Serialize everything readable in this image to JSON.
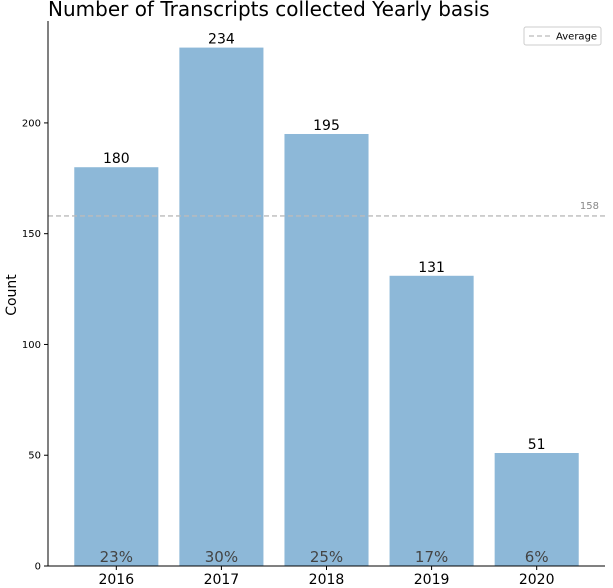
{
  "chart_data": {
    "type": "bar",
    "title": "Number of Transcripts collected Yearly basis",
    "xlabel": "",
    "ylabel": "Count",
    "categories": [
      "2016",
      "2017",
      "2018",
      "2019",
      "2020"
    ],
    "values": [
      180,
      234,
      195,
      131,
      51
    ],
    "value_labels": [
      "180",
      "234",
      "195",
      "131",
      "51"
    ],
    "percent_labels": [
      "23%",
      "30%",
      "25%",
      "17%",
      "6%"
    ],
    "ylim": [
      0,
      246
    ],
    "yticks": [
      0,
      50,
      100,
      150,
      200
    ],
    "ytick_labels": [
      "0",
      "50",
      "100",
      "150",
      "200"
    ],
    "average": 158,
    "average_label": "158",
    "legend": {
      "entries": [
        "Average"
      ],
      "position": "top-right"
    },
    "grid": false,
    "bar_color": "#8db8d8",
    "average_line_color": "#bbbbbb"
  }
}
